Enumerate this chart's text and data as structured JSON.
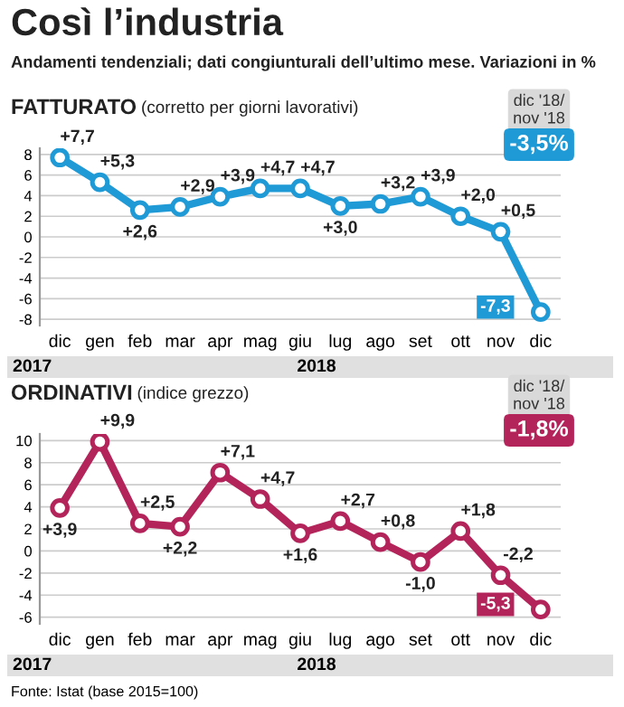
{
  "chart_data": [
    {
      "type": "line",
      "title": "FATTURATO",
      "subtitle": "(corretto per giorni lavorativi)",
      "categories": [
        "dic",
        "gen",
        "feb",
        "mar",
        "apr",
        "mag",
        "giu",
        "lug",
        "ago",
        "set",
        "ott",
        "nov",
        "dic"
      ],
      "series": [
        {
          "color": "#1f9ad6",
          "values": [
            7.7,
            5.3,
            2.6,
            2.9,
            3.9,
            4.7,
            4.7,
            3.0,
            3.2,
            3.9,
            2.0,
            0.5,
            -7.3
          ],
          "value_labels": [
            "+7,7",
            "+5,3",
            "+2,6",
            "+2,9",
            "+3,9",
            "+4,7",
            "+4,7",
            "+3,0",
            "+3,2",
            "+3,9",
            "+2,0",
            "+0,5",
            "-7,3"
          ]
        }
      ],
      "ylim": [
        -8.6,
        8.6
      ],
      "yticks": [
        -8,
        -6,
        -4,
        -2,
        0,
        2,
        4,
        6,
        8
      ],
      "grid": "y",
      "marker": "circle",
      "line_style": "solid",
      "annotations": [
        "Così l’industria",
        "Andamenti tendenziali; dati congiunturali dell’ultimo mese. Variazioni in %",
        "dic '18/\nnov '18",
        "-3,5%",
        "2017",
        "2018"
      ]
    },
    {
      "type": "line",
      "title": "ORDINATIVI",
      "subtitle": "(indice grezzo)",
      "categories": [
        "dic",
        "gen",
        "feb",
        "mar",
        "apr",
        "mag",
        "giu",
        "lug",
        "ago",
        "set",
        "ott",
        "nov",
        "dic"
      ],
      "series": [
        {
          "color": "#b3245a",
          "values": [
            3.9,
            9.9,
            2.5,
            2.2,
            7.1,
            4.7,
            1.6,
            2.7,
            0.8,
            -1.0,
            1.8,
            -2.2,
            -5.3
          ],
          "value_labels": [
            "+3,9",
            "+9,9",
            "+2,5",
            "+2,2",
            "+7,1",
            "+4,7",
            "+1,6",
            "+2,7",
            "+0,8",
            "-1,0",
            "+1,8",
            "-2,2",
            "-5,3"
          ]
        }
      ],
      "ylim": [
        -6.6,
        10.6
      ],
      "yticks": [
        -6,
        -4,
        -2,
        0,
        2,
        4,
        6,
        8,
        10
      ],
      "grid": "y",
      "marker": "circle",
      "line_style": "solid",
      "annotations": [
        "dic '18/\nnov '18",
        "-1,8%",
        "2017",
        "2018",
        "Fonte: Istat (base 2015=100)"
      ]
    }
  ]
}
